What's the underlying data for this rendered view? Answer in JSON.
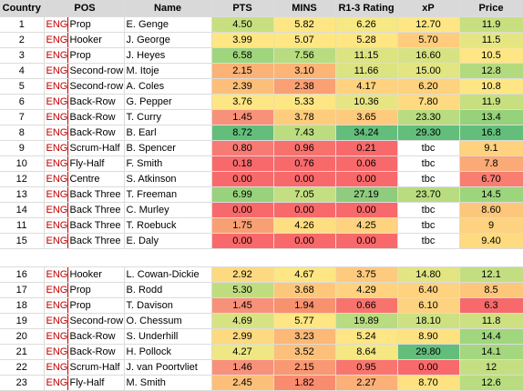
{
  "headers": [
    "Country",
    "POS",
    "Name",
    "PTS",
    "MINS",
    "R1-3 Rating",
    "xP",
    "Price"
  ],
  "rows_a": [
    {
      "no": "1",
      "country": "ENG",
      "pos": "Prop",
      "name": "E. Genge",
      "pts": "4.50",
      "mins": "5.82",
      "rating": "6.26",
      "xp": "12.70",
      "price": "11.9",
      "c": [
        "#c8df80",
        "#fde683",
        "#f6e883",
        "#fde683",
        "#c8df80"
      ]
    },
    {
      "no": "2",
      "country": "ENG",
      "pos": "Hooker",
      "name": "J. George",
      "pts": "3.99",
      "mins": "5.07",
      "rating": "5.28",
      "xp": "5.70",
      "price": "11.5",
      "c": [
        "#fde683",
        "#fde683",
        "#fde683",
        "#fecc7c",
        "#e5e683"
      ]
    },
    {
      "no": "3",
      "country": "ENG",
      "pos": "Prop",
      "name": "J. Heyes",
      "pts": "6.58",
      "mins": "7.56",
      "rating": "11.15",
      "xp": "16.60",
      "price": "10.5",
      "c": [
        "#9fd57d",
        "#b8dc7f",
        "#dce381",
        "#d7e382",
        "#fde683"
      ]
    },
    {
      "no": "4",
      "country": "ENG",
      "pos": "Second-row",
      "name": "M. Itoje",
      "pts": "2.15",
      "mins": "3.10",
      "rating": "11.66",
      "xp": "15.00",
      "price": "12.8",
      "c": [
        "#fbb277",
        "#fcb577",
        "#dce381",
        "#e2e582",
        "#b4da7f"
      ]
    },
    {
      "no": "5",
      "country": "ENG",
      "pos": "Second-row",
      "name": "A. Coles",
      "pts": "2.39",
      "mins": "2.38",
      "rating": "4.17",
      "xp": "6.20",
      "price": "10.8",
      "c": [
        "#fcbf7a",
        "#f9a074",
        "#fed27e",
        "#fed27e",
        "#fde683"
      ]
    },
    {
      "no": "6",
      "country": "ENG",
      "pos": "Back-Row",
      "name": "G. Pepper",
      "pts": "3.76",
      "mins": "5.33",
      "rating": "10.36",
      "xp": "7.80",
      "price": "11.9",
      "c": [
        "#fde683",
        "#fde683",
        "#e7e583",
        "#feda80",
        "#c8df80"
      ]
    },
    {
      "no": "7",
      "country": "ENG",
      "pos": "Back-Row",
      "name": "T. Curry",
      "pts": "1.45",
      "mins": "3.78",
      "rating": "3.65",
      "xp": "23.30",
      "price": "13.4",
      "c": [
        "#f8917a",
        "#fdcc7d",
        "#feca7d",
        "#b8dc7f",
        "#95d27b"
      ]
    },
    {
      "no": "8",
      "country": "ENG",
      "pos": "Back-Row",
      "name": "B. Earl",
      "pts": "8.72",
      "mins": "7.43",
      "rating": "34.24",
      "xp": "29.30",
      "price": "16.8",
      "c": [
        "#63be7b",
        "#bcdc80",
        "#63be7b",
        "#63be7b",
        "#63be7b"
      ]
    },
    {
      "no": "9",
      "country": "ENG",
      "pos": "Scrum-Half",
      "name": "B. Spencer",
      "pts": "0.80",
      "mins": "0.96",
      "rating": "0.21",
      "xp": "tbc",
      "price": "9.1",
      "c": [
        "#f87a74",
        "#f8716c",
        "#f8696b",
        "#ffffff",
        "#fed27e"
      ]
    },
    {
      "no": "10",
      "country": "ENG",
      "pos": "Fly-Half",
      "name": "F. Smith",
      "pts": "0.18",
      "mins": "0.76",
      "rating": "0.06",
      "xp": "tbc",
      "price": "7.8",
      "c": [
        "#f8696b",
        "#f8696b",
        "#f8696b",
        "#ffffff",
        "#fba976"
      ]
    },
    {
      "no": "12",
      "country": "ENG",
      "pos": "Centre",
      "name": "S. Atkinson",
      "pts": "0.00",
      "mins": "0.00",
      "rating": "0.00",
      "xp": "tbc",
      "price": "6.70",
      "c": [
        "#f8696b",
        "#f8696b",
        "#f8696b",
        "#ffffff",
        "#f87e71"
      ]
    },
    {
      "no": "13",
      "country": "ENG",
      "pos": "Back Three",
      "name": "T. Freeman",
      "pts": "6.99",
      "mins": "7.05",
      "rating": "27.19",
      "xp": "23.70",
      "price": "14.5",
      "c": [
        "#98d27c",
        "#c3df81",
        "#8fcc7e",
        "#b8dc7f",
        "#9dd57d"
      ]
    },
    {
      "no": "14",
      "country": "ENG",
      "pos": "Back Three",
      "name": "C. Murley",
      "pts": "0.00",
      "mins": "0.00",
      "rating": "0.00",
      "xp": "tbc",
      "price": "8.60",
      "c": [
        "#f8696b",
        "#f8696b",
        "#f8696b",
        "#ffffff",
        "#fdc77b"
      ]
    },
    {
      "no": "11",
      "country": "ENG",
      "pos": "Back Three",
      "name": "T. Roebuck",
      "pts": "1.75",
      "mins": "4.26",
      "rating": "4.25",
      "xp": "tbc",
      "price": "9",
      "c": [
        "#f99f74",
        "#fede80",
        "#fed27e",
        "#ffffff",
        "#fed27e"
      ]
    },
    {
      "no": "15",
      "country": "ENG",
      "pos": "Back Three",
      "name": "E. Daly",
      "pts": "0.00",
      "mins": "0.00",
      "rating": "0.00",
      "xp": "tbc",
      "price": "9.40",
      "c": [
        "#f8696b",
        "#f8696b",
        "#f8696b",
        "#ffffff",
        "#feda80"
      ]
    }
  ],
  "rows_b": [
    {
      "no": "16",
      "country": "ENG",
      "pos": "Hooker",
      "name": "L. Cowan-Dickie",
      "pts": "2.92",
      "mins": "4.67",
      "rating": "3.75",
      "xp": "14.80",
      "price": "12.1",
      "c": [
        "#fdda80",
        "#fde683",
        "#feca7d",
        "#e2e582",
        "#c2de80"
      ]
    },
    {
      "no": "17",
      "country": "ENG",
      "pos": "Prop",
      "name": "B. Rodd",
      "pts": "5.30",
      "mins": "3.68",
      "rating": "4.29",
      "xp": "6.40",
      "price": "8.5",
      "c": [
        "#bfdd7f",
        "#fdc77b",
        "#fed27e",
        "#fed27e",
        "#fdc77b"
      ]
    },
    {
      "no": "18",
      "country": "ENG",
      "pos": "Prop",
      "name": "T. Davison",
      "pts": "1.45",
      "mins": "1.94",
      "rating": "0.66",
      "xp": "6.10",
      "price": "6.3",
      "c": [
        "#f8917a",
        "#f8916e",
        "#f8736d",
        "#fed27e",
        "#f8696b"
      ]
    },
    {
      "no": "19",
      "country": "ENG",
      "pos": "Second-row",
      "name": "O. Chessum",
      "pts": "4.69",
      "mins": "5.77",
      "rating": "19.89",
      "xp": "18.10",
      "price": "11.8",
      "c": [
        "#d7e382",
        "#fde683",
        "#b8dc7f",
        "#cde182",
        "#cde182"
      ]
    },
    {
      "no": "20",
      "country": "ENG",
      "pos": "Back-Row",
      "name": "S. Underhill",
      "pts": "2.99",
      "mins": "3.23",
      "rating": "5.24",
      "xp": "8.90",
      "price": "14.4",
      "c": [
        "#fdda80",
        "#fbb877",
        "#fde683",
        "#fee281",
        "#a0d67d"
      ]
    },
    {
      "no": "21",
      "country": "ENG",
      "pos": "Back-Row",
      "name": "H. Pollock",
      "pts": "4.27",
      "mins": "3.52",
      "rating": "8.64",
      "xp": "29.80",
      "price": "14.1",
      "c": [
        "#eee783",
        "#fcc07a",
        "#f5e883",
        "#63be7b",
        "#a4d77e"
      ]
    },
    {
      "no": "22",
      "country": "ENG",
      "pos": "Scrum-Half",
      "name": "J. van Poortvliet",
      "pts": "1.46",
      "mins": "2.15",
      "rating": "0.95",
      "xp": "0.00",
      "price": "12",
      "c": [
        "#f8917a",
        "#f99872",
        "#f8766d",
        "#f8696b",
        "#c4df81"
      ]
    },
    {
      "no": "23",
      "country": "ENG",
      "pos": "Fly-Half",
      "name": "M. Smith",
      "pts": "2.45",
      "mins": "1.82",
      "rating": "2.27",
      "xp": "8.70",
      "price": "12.6",
      "c": [
        "#fcbf7a",
        "#f98b6f",
        "#fbb077",
        "#fee281",
        "#b8dc7f"
      ]
    }
  ]
}
